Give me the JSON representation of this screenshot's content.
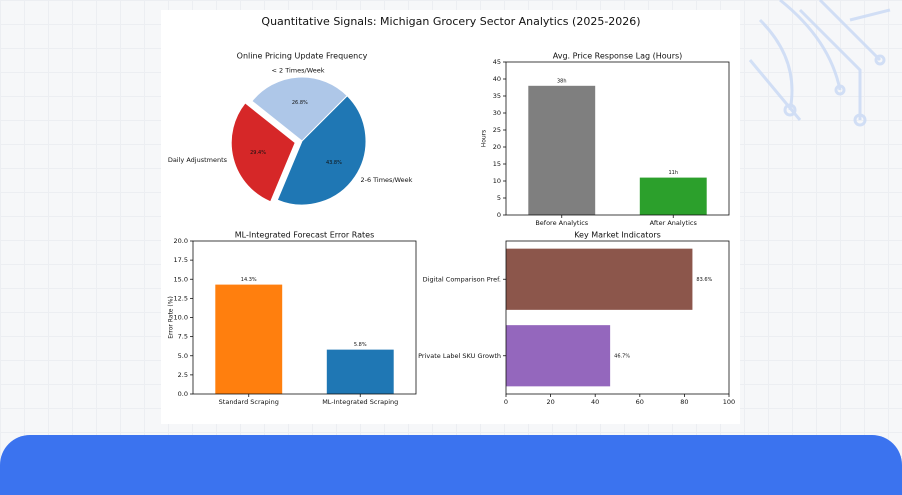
{
  "title": "Quantitative Signals: Michigan Grocery Sector Analytics (2025-2026)",
  "chart_data": [
    {
      "type": "pie",
      "title": "Online Pricing Update Frequency",
      "categories": [
        "< 2 Times/Week",
        "Daily Adjustments",
        "2-6 Times/Week"
      ],
      "values": [
        26.8,
        29.4,
        43.8
      ],
      "value_labels": [
        "26.8%",
        "29.4%",
        "43.8%"
      ],
      "colors": [
        "#aec7e8",
        "#d62728",
        "#1f77b4"
      ]
    },
    {
      "type": "bar",
      "title": "Avg. Price Response Lag (Hours)",
      "ylabel": "Hours",
      "categories": [
        "Before Analytics",
        "After Analytics"
      ],
      "values": [
        38,
        11
      ],
      "value_labels": [
        "38h",
        "11h"
      ],
      "colors": [
        "#7f7f7f",
        "#2ca02c"
      ],
      "ylim": [
        0,
        45
      ],
      "yticks": [
        0,
        5,
        10,
        15,
        20,
        25,
        30,
        35,
        40,
        45
      ]
    },
    {
      "type": "bar",
      "title": "ML-Integrated Forecast Error Rates",
      "ylabel": "Error Rate (%)",
      "categories": [
        "Standard Scraping",
        "ML-Integrated Scraping"
      ],
      "values": [
        14.3,
        5.8
      ],
      "value_labels": [
        "14.3%",
        "5.8%"
      ],
      "colors": [
        "#ff7f0e",
        "#1f77b4"
      ],
      "ylim": [
        0,
        20
      ],
      "yticks": [
        {
          "value": 0,
          "label": "0.0"
        },
        {
          "value": 2.5,
          "label": "2.5"
        },
        {
          "value": 5,
          "label": "5.0"
        },
        {
          "value": 7.5,
          "label": "7.5"
        },
        {
          "value": 10,
          "label": "10.0"
        },
        {
          "value": 12.5,
          "label": "12.5"
        },
        {
          "value": 15,
          "label": "15.0"
        },
        {
          "value": 17.5,
          "label": "17.5"
        },
        {
          "value": 20,
          "label": "20.0"
        }
      ]
    },
    {
      "type": "barh",
      "title": "Key Market Indicators",
      "categories": [
        "Digital Comparison Pref.",
        "Private Label SKU Growth"
      ],
      "values": [
        83.6,
        46.7
      ],
      "value_labels": [
        "83.6%",
        "46.7%"
      ],
      "colors": [
        "#8c564b",
        "#9467bd"
      ],
      "xlim": [
        0,
        100
      ],
      "xticks": [
        0,
        20,
        40,
        60,
        80,
        100
      ]
    }
  ]
}
